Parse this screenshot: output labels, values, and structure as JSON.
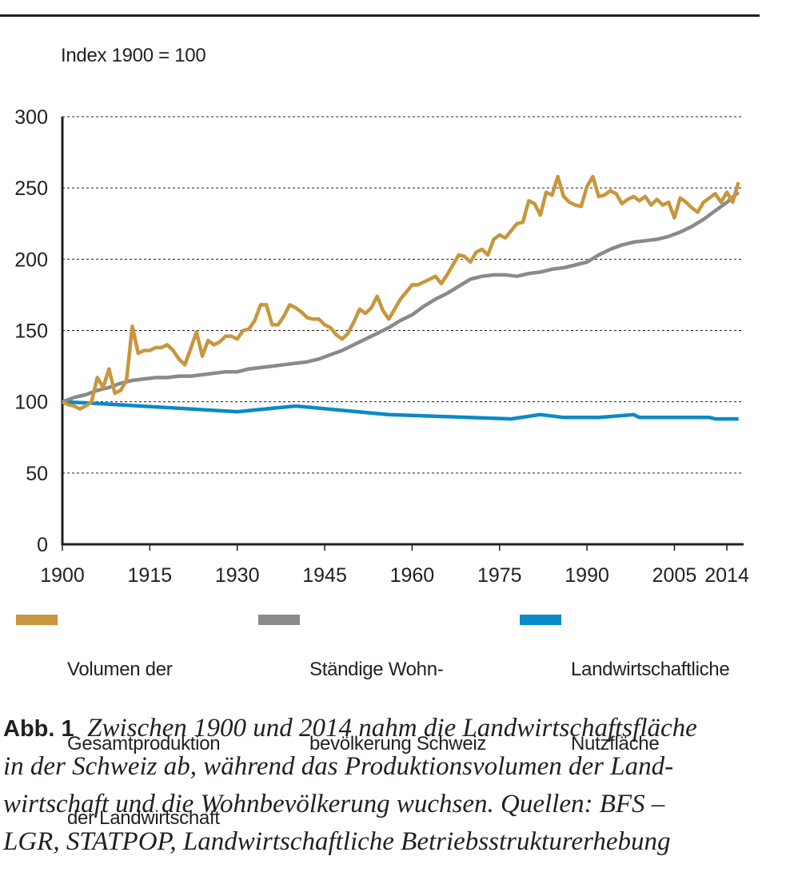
{
  "unit_label": "Index 1900 = 100",
  "legend": [
    {
      "lines": [
        "Volumen der",
        "Gesamtproduktion",
        "der Landwirtschaft"
      ],
      "color": "#c8963e"
    },
    {
      "lines": [
        "Ständige Wohn-",
        "bevölkerung Schweiz"
      ],
      "color": "#8a8a8a"
    },
    {
      "lines": [
        "Landwirtschaftliche",
        "Nutzfläche"
      ],
      "color": "#0a8ac6"
    }
  ],
  "caption": {
    "label": "Abb. 1",
    "lines": [
      "Zwischen 1900 und 2014 nahm die Landwirtschaftsfläche",
      "in der Schweiz ab, während das Produktionsvolumen der Land-",
      "wirtschaft und die Wohnbevölkerung wuchsen. Quellen: BFS –",
      "LGR, STATPOP, Landwirtschaftliche Betriebsstrukturerhebung"
    ]
  },
  "chart_data": {
    "type": "line",
    "ylabel": "Index 1900 = 100",
    "xlim": [
      1900,
      2017
    ],
    "ylim": [
      0,
      300
    ],
    "yticks": [
      0,
      50,
      100,
      150,
      200,
      250,
      300
    ],
    "xticks": [
      1900,
      1915,
      1930,
      1945,
      1960,
      1975,
      1990,
      2005,
      2014
    ],
    "grid": "horizontal dashed",
    "legend_position": "bottom",
    "series": [
      {
        "name": "Volumen der Gesamtproduktion der Landwirtschaft",
        "color": "#c8963e",
        "x": [
          1900,
          1901,
          1902,
          1903,
          1904,
          1905,
          1906,
          1907,
          1908,
          1909,
          1910,
          1911,
          1912,
          1913,
          1914,
          1915,
          1916,
          1917,
          1918,
          1919,
          1920,
          1921,
          1922,
          1923,
          1924,
          1925,
          1926,
          1927,
          1928,
          1929,
          1930,
          1931,
          1932,
          1933,
          1934,
          1935,
          1936,
          1937,
          1938,
          1939,
          1940,
          1941,
          1942,
          1943,
          1944,
          1945,
          1946,
          1947,
          1948,
          1949,
          1950,
          1951,
          1952,
          1953,
          1954,
          1955,
          1956,
          1957,
          1958,
          1959,
          1960,
          1961,
          1962,
          1963,
          1964,
          1965,
          1966,
          1967,
          1968,
          1969,
          1970,
          1971,
          1972,
          1973,
          1974,
          1975,
          1976,
          1977,
          1978,
          1979,
          1980,
          1981,
          1982,
          1983,
          1984,
          1985,
          1986,
          1987,
          1988,
          1989,
          1990,
          1991,
          1992,
          1993,
          1994,
          1995,
          1996,
          1997,
          1998,
          1999,
          2000,
          2001,
          2002,
          2003,
          2004,
          2005,
          2006,
          2007,
          2008,
          2009,
          2010,
          2011,
          2012,
          2013,
          2014,
          2015,
          2016
        ],
        "y": [
          100,
          98,
          97,
          95,
          97,
          100,
          117,
          110,
          123,
          106,
          108,
          115,
          153,
          134,
          136,
          136,
          138,
          138,
          140,
          136,
          130,
          126,
          137,
          149,
          132,
          143,
          140,
          142,
          146,
          146,
          144,
          150,
          151,
          157,
          168,
          168,
          154,
          154,
          160,
          168,
          166,
          163,
          159,
          158,
          158,
          154,
          152,
          147,
          144,
          148,
          156,
          165,
          162,
          166,
          174,
          164,
          158,
          165,
          172,
          177,
          182,
          182,
          184,
          186,
          188,
          183,
          189,
          196,
          203,
          202,
          198,
          205,
          207,
          203,
          214,
          217,
          215,
          220,
          225,
          226,
          241,
          239,
          231,
          247,
          245,
          258,
          244,
          240,
          238,
          237,
          251,
          258,
          244,
          245,
          248,
          246,
          239,
          242,
          244,
          241,
          244,
          238,
          242,
          238,
          240,
          229,
          243,
          240,
          236,
          233,
          240,
          243,
          246,
          240,
          247,
          240,
          254
        ]
      },
      {
        "name": "Ständige Wohnbevölkerung Schweiz",
        "color": "#8a8a8a",
        "x": [
          1900,
          1902,
          1904,
          1906,
          1908,
          1910,
          1912,
          1914,
          1916,
          1918,
          1920,
          1922,
          1924,
          1926,
          1928,
          1930,
          1932,
          1934,
          1936,
          1938,
          1940,
          1942,
          1944,
          1946,
          1948,
          1950,
          1952,
          1954,
          1956,
          1958,
          1960,
          1962,
          1964,
          1966,
          1968,
          1970,
          1972,
          1974,
          1976,
          1978,
          1980,
          1982,
          1984,
          1986,
          1988,
          1990,
          1992,
          1994,
          1996,
          1998,
          2000,
          2002,
          2004,
          2006,
          2008,
          2010,
          2012,
          2014,
          2016
        ],
        "y": [
          100,
          103,
          105,
          108,
          110,
          113,
          115,
          116,
          117,
          117,
          118,
          118,
          119,
          120,
          121,
          121,
          123,
          124,
          125,
          126,
          127,
          128,
          130,
          133,
          136,
          140,
          144,
          148,
          152,
          157,
          161,
          167,
          172,
          176,
          181,
          186,
          188,
          189,
          189,
          188,
          190,
          191,
          193,
          194,
          196,
          198,
          203,
          207,
          210,
          212,
          213,
          214,
          216,
          219,
          223,
          228,
          234,
          240,
          247
        ]
      },
      {
        "name": "Landwirtschaftliche Nutzfläche",
        "color": "#0a8ac6",
        "x": [
          1900,
          1905,
          1930,
          1940,
          1956,
          1977,
          1982,
          1986,
          1992,
          1998,
          1999,
          2011,
          2012,
          2016
        ],
        "y": [
          100,
          99,
          93,
          97,
          91,
          88,
          91,
          89,
          89,
          91,
          89,
          89,
          88,
          88
        ]
      }
    ]
  }
}
